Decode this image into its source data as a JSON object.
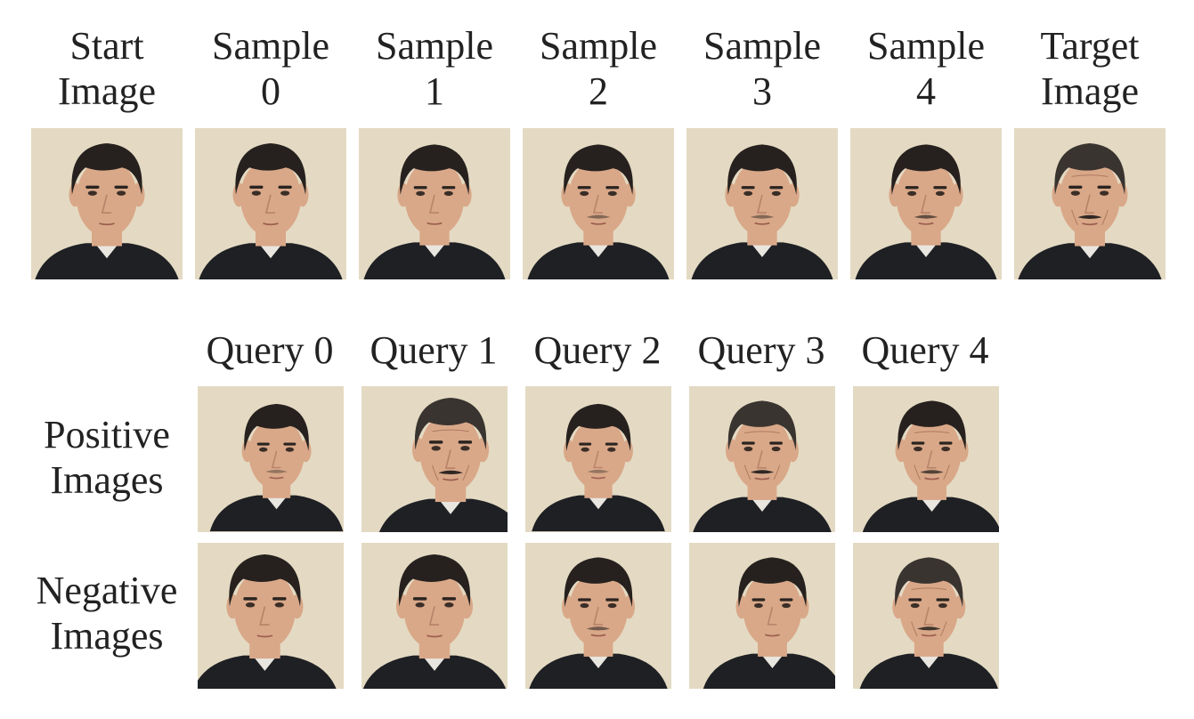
{
  "header_labels": [
    {
      "line1": "Start",
      "line2": "Image"
    },
    {
      "line1": "Sample",
      "line2": "0"
    },
    {
      "line1": "Sample",
      "line2": "1"
    },
    {
      "line1": "Sample",
      "line2": "2"
    },
    {
      "line1": "Sample",
      "line2": "3"
    },
    {
      "line1": "Sample",
      "line2": "4"
    },
    {
      "line1": "Target",
      "line2": "Image"
    }
  ],
  "query_labels": [
    "Query 0",
    "Query 1",
    "Query 2",
    "Query 3",
    "Query 4"
  ],
  "row_labels": {
    "positive": {
      "line1": "Positive",
      "line2": "Images"
    },
    "negative": {
      "line1": "Negative",
      "line2": "Images"
    }
  },
  "colors": {
    "background": "#e4dac3",
    "skin": "#d9a889",
    "hair": "#26211e",
    "suit": "#1e2024",
    "text": "#222222"
  }
}
